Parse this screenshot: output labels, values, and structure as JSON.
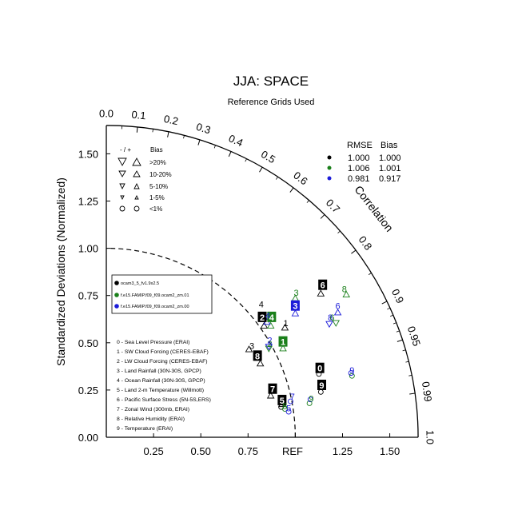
{
  "chart_data": {
    "type": "scatter",
    "subtype": "taylor-diagram",
    "title": "JJA: SPACE",
    "subtitle": "Reference Grids Used",
    "ylabel": "Standardized Deviations (Normalized)",
    "arc_label": "Correlation",
    "ref_label": "REF",
    "std_range": [
      0,
      1.65
    ],
    "ref_circle_std": 1.0,
    "x_ticks": [
      "0.25",
      "0.50",
      "0.75",
      "1.25",
      "1.50"
    ],
    "x_tick_values": [
      0.25,
      0.5,
      0.75,
      1.25,
      1.5
    ],
    "y_ticks": [
      "0.00",
      "0.25",
      "0.50",
      "0.75",
      "1.00",
      "1.25",
      "1.50"
    ],
    "y_tick_values": [
      0,
      0.25,
      0.5,
      0.75,
      1.0,
      1.25,
      1.5
    ],
    "corr_ticks": [
      "0.0",
      "0.1",
      "0.2",
      "0.3",
      "0.4",
      "0.5",
      "0.6",
      "0.7",
      "0.8",
      "0.9",
      "0.95",
      "0.99",
      "1.0"
    ],
    "corr_tick_values": [
      0.0,
      0.1,
      0.2,
      0.3,
      0.4,
      0.5,
      0.6,
      0.7,
      0.8,
      0.9,
      0.95,
      0.99,
      1.0
    ],
    "stats_table": {
      "headers": [
        "RMSE",
        "Bias"
      ],
      "rows": [
        {
          "color": "#000000",
          "rmse": "1.000",
          "bias": "1.000"
        },
        {
          "color": "#1a7f1a",
          "rmse": "1.006",
          "bias": "1.001"
        },
        {
          "color": "#1c1cd9",
          "rmse": "0.981",
          "bias": "0.917"
        }
      ]
    },
    "bias_legend": {
      "header_sign": "- / +",
      "header_bias": "Bias",
      "rows": [
        ">20%",
        "10-20%",
        "5-10%",
        "1-5%",
        "<1%"
      ]
    },
    "series": [
      {
        "name": "ocam3_5_fv1.9x2.5",
        "color": "#000000"
      },
      {
        "name": "f.e15.FAMIP.f09_f09.ocam2_zm.01",
        "color": "#1a7f1a"
      },
      {
        "name": "f.e15.FAMIP.f09_f09.ocam2_zm.00",
        "color": "#1c1cd9"
      }
    ],
    "variables": [
      "0 - Sea Level Pressure (ERAI)",
      "1 - SW Cloud Forcing (CERES-EBAF)",
      "2 - LW Cloud Forcing (CERES-EBAF)",
      "3 - Land Rainfall (30N-30S, GPCP)",
      "4 - Ocean Rainfall (30N-30S, GPCP)",
      "5 - Land 2-m Temperature (Willmott)",
      "6 - Pacific Surface Stress (5N-5S,ERS)",
      "7 - Zonal Wind (300mb, ERAI)",
      "8 - Relative Humidity (ERAI)",
      "9 - Temperature (ERAI)"
    ],
    "points": [
      {
        "series": 0,
        "label": "0",
        "x": 1.13,
        "y": 0.365,
        "box": true
      },
      {
        "series": 0,
        "label": "1",
        "x": 0.95,
        "y": 0.605,
        "box": false
      },
      {
        "series": 0,
        "label": "2",
        "x": 0.825,
        "y": 0.635,
        "box": true
      },
      {
        "series": 0,
        "label": "3",
        "x": 0.77,
        "y": 0.485,
        "box": false
      },
      {
        "series": 0,
        "label": "4",
        "x": 0.82,
        "y": 0.705,
        "box": false
      },
      {
        "series": 0,
        "label": "5",
        "x": 0.93,
        "y": 0.195,
        "box": true
      },
      {
        "series": 0,
        "label": "6",
        "x": 1.145,
        "y": 0.805,
        "box": true
      },
      {
        "series": 0,
        "label": "7",
        "x": 0.88,
        "y": 0.255,
        "box": true
      },
      {
        "series": 0,
        "label": "8",
        "x": 0.8,
        "y": 0.43,
        "box": true
      },
      {
        "series": 0,
        "label": "9",
        "x": 1.14,
        "y": 0.275,
        "box": true
      },
      {
        "series": 1,
        "label": "1",
        "x": 0.935,
        "y": 0.505,
        "box": true
      },
      {
        "series": 1,
        "label": "2",
        "x": 0.865,
        "y": 0.495,
        "box": false
      },
      {
        "series": 1,
        "label": "3",
        "x": 1.005,
        "y": 0.765,
        "box": false
      },
      {
        "series": 1,
        "label": "4",
        "x": 0.875,
        "y": 0.635,
        "box": true
      },
      {
        "series": 1,
        "label": "5",
        "x": 0.945,
        "y": 0.165,
        "box": false
      },
      {
        "series": 1,
        "label": "6",
        "x": 1.195,
        "y": 0.635,
        "box": false
      },
      {
        "series": 1,
        "label": "8",
        "x": 1.26,
        "y": 0.785,
        "box": false
      },
      {
        "series": 1,
        "label": "9",
        "x": 1.085,
        "y": 0.205,
        "box": false
      },
      {
        "series": 2,
        "label": "2",
        "x": 0.865,
        "y": 0.515,
        "box": false
      },
      {
        "series": 2,
        "label": "3",
        "x": 1.0,
        "y": 0.695,
        "box": true
      },
      {
        "series": 2,
        "label": "4",
        "x": 0.855,
        "y": 0.645,
        "box": false
      },
      {
        "series": 2,
        "label": "5",
        "x": 0.965,
        "y": 0.155,
        "box": false
      },
      {
        "series": 2,
        "label": "6",
        "x": 1.225,
        "y": 0.695,
        "box": false
      },
      {
        "series": 2,
        "label": "7",
        "x": 0.985,
        "y": 0.215,
        "box": false
      },
      {
        "series": 2,
        "label": "8",
        "x": 1.185,
        "y": 0.635,
        "box": false
      },
      {
        "series": 2,
        "label": "9",
        "x": 1.3,
        "y": 0.355,
        "box": false
      }
    ],
    "markers": [
      {
        "series": 0,
        "shape": "triangle-up",
        "x": 0.945,
        "y": 0.58
      },
      {
        "series": 0,
        "shape": "triangle-up",
        "x": 0.835,
        "y": 0.59
      },
      {
        "series": 0,
        "shape": "triangle-up",
        "x": 0.755,
        "y": 0.465
      },
      {
        "series": 0,
        "shape": "triangle-up",
        "x": 0.815,
        "y": 0.39
      },
      {
        "series": 0,
        "shape": "triangle-up",
        "x": 0.87,
        "y": 0.22
      },
      {
        "series": 0,
        "shape": "triangle-up",
        "x": 1.135,
        "y": 0.76
      },
      {
        "series": 0,
        "shape": "circle",
        "x": 1.125,
        "y": 0.335
      },
      {
        "series": 0,
        "shape": "circle",
        "x": 1.135,
        "y": 0.24
      },
      {
        "series": 0,
        "shape": "circle",
        "x": 0.925,
        "y": 0.16
      },
      {
        "series": 0,
        "shape": "triangle-up",
        "x": 0.93,
        "y": 0.175
      },
      {
        "series": 1,
        "shape": "triangle-up",
        "x": 0.935,
        "y": 0.47
      },
      {
        "series": 1,
        "shape": "triangle-up",
        "x": 0.87,
        "y": 0.59
      },
      {
        "series": 1,
        "shape": "triangle-up",
        "x": 1.0,
        "y": 0.735
      },
      {
        "series": 1,
        "shape": "triangle-down",
        "x": 1.215,
        "y": 0.605
      },
      {
        "series": 1,
        "shape": "triangle-up",
        "x": 1.27,
        "y": 0.755
      },
      {
        "series": 1,
        "shape": "circle",
        "x": 1.075,
        "y": 0.18
      },
      {
        "series": 1,
        "shape": "circle",
        "x": 0.945,
        "y": 0.15
      },
      {
        "series": 1,
        "shape": "circle",
        "x": 1.3,
        "y": 0.325
      },
      {
        "series": 1,
        "shape": "triangle-down",
        "x": 0.86,
        "y": 0.47
      },
      {
        "series": 2,
        "shape": "triangle-up",
        "x": 1.0,
        "y": 0.655
      },
      {
        "series": 2,
        "shape": "triangle-up",
        "x": 1.225,
        "y": 0.66
      },
      {
        "series": 2,
        "shape": "triangle-down",
        "x": 1.18,
        "y": 0.6
      },
      {
        "series": 2,
        "shape": "triangle-down",
        "x": 0.86,
        "y": 0.48
      },
      {
        "series": 2,
        "shape": "triangle-up",
        "x": 0.85,
        "y": 0.61
      },
      {
        "series": 2,
        "shape": "circle",
        "x": 1.08,
        "y": 0.2
      },
      {
        "series": 2,
        "shape": "circle",
        "x": 0.965,
        "y": 0.135
      },
      {
        "series": 2,
        "shape": "circle",
        "x": 1.295,
        "y": 0.34
      },
      {
        "series": 2,
        "shape": "circle",
        "x": 0.975,
        "y": 0.19
      }
    ]
  }
}
